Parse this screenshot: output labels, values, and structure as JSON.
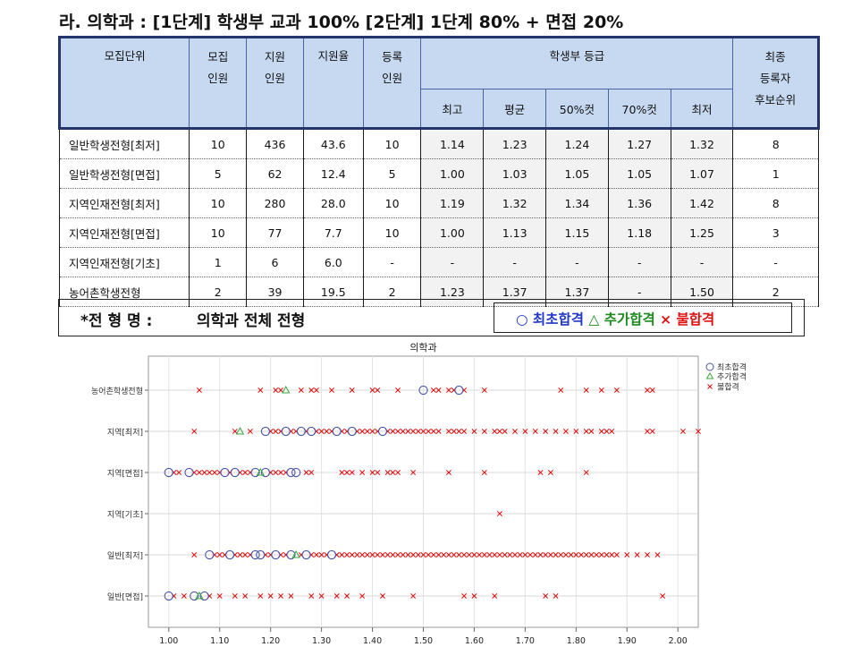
{
  "title": "라. 의학과 : [1단계] 학생부 교과 100% [2단계] 1단계 80% + 면접 20%",
  "table": {
    "headers": {
      "unit": "모집단위",
      "quota": [
        "모집",
        "인원"
      ],
      "applicants": [
        "지원",
        "인원"
      ],
      "ratio": "지원율",
      "enrolled": [
        "등록",
        "인원"
      ],
      "grade_group": "학생부 등급",
      "grade_cols": [
        "최고",
        "평균",
        "50%컷",
        "70%컷",
        "최저"
      ],
      "final": [
        "최종",
        "등록자",
        "후보순위"
      ]
    },
    "rows": [
      {
        "unit": "일반학생전형[최저]",
        "quota": "10",
        "applicants": "436",
        "ratio": "43.6",
        "enrolled": "10",
        "best": "1.14",
        "avg": "1.23",
        "cut50": "1.24",
        "cut70": "1.27",
        "worst": "1.32",
        "final": "8"
      },
      {
        "unit": "일반학생전형[면접]",
        "quota": "5",
        "applicants": "62",
        "ratio": "12.4",
        "enrolled": "5",
        "best": "1.00",
        "avg": "1.03",
        "cut50": "1.05",
        "cut70": "1.05",
        "worst": "1.07",
        "final": "1"
      },
      {
        "unit": "지역인재전형[최저]",
        "quota": "10",
        "applicants": "280",
        "ratio": "28.0",
        "enrolled": "10",
        "best": "1.19",
        "avg": "1.32",
        "cut50": "1.34",
        "cut70": "1.36",
        "worst": "1.42",
        "final": "8"
      },
      {
        "unit": "지역인재전형[면접]",
        "quota": "10",
        "applicants": "77",
        "ratio": "7.7",
        "enrolled": "10",
        "best": "1.00",
        "avg": "1.13",
        "cut50": "1.15",
        "cut70": "1.18",
        "worst": "1.25",
        "final": "3"
      },
      {
        "unit": "지역인재전형[기초]",
        "quota": "1",
        "applicants": "6",
        "ratio": "6.0",
        "enrolled": "-",
        "best": "-",
        "avg": "-",
        "cut50": "-",
        "cut70": "-",
        "worst": "-",
        "final": "-"
      },
      {
        "unit": "농어촌학생전형",
        "quota": "2",
        "applicants": "39",
        "ratio": "19.5",
        "enrolled": "2",
        "best": "1.23",
        "avg": "1.37",
        "cut50": "1.37",
        "cut70": "-",
        "worst": "1.50",
        "final": "2"
      }
    ]
  },
  "legend_bar": {
    "label": "*전 형 명 :",
    "value": "의학과 전체 전형",
    "first": "○ 최초합격",
    "added": "△ 추가합격",
    "failed": "× 불합격"
  },
  "colors": {
    "first": "#1f38c8",
    "added": "#1f8a1f",
    "failed": "#e01010",
    "header_bg": "#c6d9f1",
    "header_border": "#24356b"
  },
  "chart_data": {
    "type": "scatter",
    "title": "의학과",
    "xlabel": "",
    "ylabel": "",
    "xlim": [
      0.96,
      2.04
    ],
    "xticks": [
      "1.00",
      "1.10",
      "1.20",
      "1.30",
      "1.40",
      "1.50",
      "1.60",
      "1.70",
      "1.80",
      "1.90",
      "2.00"
    ],
    "categories": [
      "농어촌학생전형",
      "지역[최저]",
      "지역[면접]",
      "지역[기초]",
      "일반[최저]",
      "일반[면접]"
    ],
    "legend": {
      "placement": "top-right",
      "entries": [
        "최초합격",
        "추가합격",
        "불합격"
      ]
    },
    "grid": true,
    "series": [
      {
        "name": "최초합격",
        "marker": "circle",
        "points": [
          [
            "농어촌학생전형",
            1.5
          ],
          [
            "농어촌학생전형",
            1.57
          ],
          [
            "지역[최저]",
            1.19
          ],
          [
            "지역[최저]",
            1.23
          ],
          [
            "지역[최저]",
            1.26
          ],
          [
            "지역[최저]",
            1.28
          ],
          [
            "지역[최저]",
            1.33
          ],
          [
            "지역[최저]",
            1.36
          ],
          [
            "지역[최저]",
            1.42
          ],
          [
            "지역[면접]",
            1.0
          ],
          [
            "지역[면접]",
            1.04
          ],
          [
            "지역[면접]",
            1.11
          ],
          [
            "지역[면접]",
            1.13
          ],
          [
            "지역[면접]",
            1.17
          ],
          [
            "지역[면접]",
            1.19
          ],
          [
            "지역[면접]",
            1.24
          ],
          [
            "지역[면접]",
            1.25
          ],
          [
            "일반[최저]",
            1.08
          ],
          [
            "일반[최저]",
            1.12
          ],
          [
            "일반[최저]",
            1.17
          ],
          [
            "일반[최저]",
            1.18
          ],
          [
            "일반[최저]",
            1.21
          ],
          [
            "일반[최저]",
            1.24
          ],
          [
            "일반[최저]",
            1.27
          ],
          [
            "일반[최저]",
            1.32
          ],
          [
            "일반[면접]",
            1.0
          ],
          [
            "일반[면접]",
            1.05
          ],
          [
            "일반[면접]",
            1.07
          ]
        ]
      },
      {
        "name": "추가합격",
        "marker": "triangle",
        "points": [
          [
            "농어촌학생전형",
            1.23
          ],
          [
            "지역[최저]",
            1.14
          ],
          [
            "지역[면접]",
            1.18
          ],
          [
            "일반[최저]",
            1.25
          ],
          [
            "일반[면접]",
            1.06
          ]
        ]
      },
      {
        "name": "불합격",
        "marker": "x",
        "points": [
          [
            "농어촌학생전형",
            1.06
          ],
          [
            "농어촌학생전형",
            1.18
          ],
          [
            "농어촌학생전형",
            1.21
          ],
          [
            "농어촌학생전형",
            1.22
          ],
          [
            "농어촌학생전형",
            1.26
          ],
          [
            "농어촌학생전형",
            1.28
          ],
          [
            "농어촌학생전형",
            1.29
          ],
          [
            "농어촌학생전형",
            1.32
          ],
          [
            "농어촌학생전형",
            1.36
          ],
          [
            "농어촌학생전형",
            1.4
          ],
          [
            "농어촌학생전형",
            1.41
          ],
          [
            "농어촌학생전형",
            1.45
          ],
          [
            "농어촌학생전형",
            1.52
          ],
          [
            "농어촌학생전형",
            1.53
          ],
          [
            "농어촌학생전형",
            1.55
          ],
          [
            "농어촌학생전형",
            1.56
          ],
          [
            "농어촌학생전형",
            1.58
          ],
          [
            "농어촌학생전형",
            1.62
          ],
          [
            "농어촌학생전형",
            1.77
          ],
          [
            "농어촌학생전형",
            1.82
          ],
          [
            "농어촌학생전형",
            1.85
          ],
          [
            "농어촌학생전형",
            1.88
          ],
          [
            "농어촌학생전형",
            1.94
          ],
          [
            "농어촌학생전형",
            1.95
          ],
          [
            "지역[최저]",
            1.05
          ],
          [
            "지역[최저]",
            1.13
          ],
          [
            "지역[최저]",
            1.16
          ],
          [
            "지역[최저]",
            1.2
          ],
          [
            "지역[최저]",
            1.21
          ],
          [
            "지역[최저]",
            1.22
          ],
          [
            "지역[최저]",
            1.24
          ],
          [
            "지역[최저]",
            1.25
          ],
          [
            "지역[최저]",
            1.27
          ],
          [
            "지역[최저]",
            1.29
          ],
          [
            "지역[최저]",
            1.3
          ],
          [
            "지역[최저]",
            1.31
          ],
          [
            "지역[최저]",
            1.32
          ],
          [
            "지역[최저]",
            1.34
          ],
          [
            "지역[최저]",
            1.35
          ],
          [
            "지역[최저]",
            1.37
          ],
          [
            "지역[최저]",
            1.38
          ],
          [
            "지역[최저]",
            1.39
          ],
          [
            "지역[최저]",
            1.4
          ],
          [
            "지역[최저]",
            1.41
          ],
          [
            "지역[최저]",
            1.43
          ],
          [
            "지역[최저]",
            1.44
          ],
          [
            "지역[최저]",
            1.45
          ],
          [
            "지역[최저]",
            1.46
          ],
          [
            "지역[최저]",
            1.47
          ],
          [
            "지역[최저]",
            1.48
          ],
          [
            "지역[최저]",
            1.49
          ],
          [
            "지역[최저]",
            1.5
          ],
          [
            "지역[최저]",
            1.51
          ],
          [
            "지역[최저]",
            1.52
          ],
          [
            "지역[최저]",
            1.53
          ],
          [
            "지역[최저]",
            1.55
          ],
          [
            "지역[최저]",
            1.56
          ],
          [
            "지역[최저]",
            1.57
          ],
          [
            "지역[최저]",
            1.58
          ],
          [
            "지역[최저]",
            1.6
          ],
          [
            "지역[최저]",
            1.62
          ],
          [
            "지역[최저]",
            1.64
          ],
          [
            "지역[최저]",
            1.65
          ],
          [
            "지역[최저]",
            1.66
          ],
          [
            "지역[최저]",
            1.68
          ],
          [
            "지역[최저]",
            1.7
          ],
          [
            "지역[최저]",
            1.72
          ],
          [
            "지역[최저]",
            1.74
          ],
          [
            "지역[최저]",
            1.76
          ],
          [
            "지역[최저]",
            1.78
          ],
          [
            "지역[최저]",
            1.8
          ],
          [
            "지역[최저]",
            1.82
          ],
          [
            "지역[최저]",
            1.83
          ],
          [
            "지역[최저]",
            1.85
          ],
          [
            "지역[최저]",
            1.86
          ],
          [
            "지역[최저]",
            1.87
          ],
          [
            "지역[최저]",
            1.94
          ],
          [
            "지역[최저]",
            1.95
          ],
          [
            "지역[최저]",
            2.01
          ],
          [
            "지역[최저]",
            2.04
          ],
          [
            "지역[면접]",
            1.01
          ],
          [
            "지역[면접]",
            1.02
          ],
          [
            "지역[면접]",
            1.05
          ],
          [
            "지역[면접]",
            1.06
          ],
          [
            "지역[면접]",
            1.07
          ],
          [
            "지역[면접]",
            1.08
          ],
          [
            "지역[면접]",
            1.09
          ],
          [
            "지역[면접]",
            1.1
          ],
          [
            "지역[면접]",
            1.12
          ],
          [
            "지역[면접]",
            1.14
          ],
          [
            "지역[면접]",
            1.15
          ],
          [
            "지역[면접]",
            1.16
          ],
          [
            "지역[면접]",
            1.2
          ],
          [
            "지역[면접]",
            1.21
          ],
          [
            "지역[면접]",
            1.22
          ],
          [
            "지역[면접]",
            1.23
          ],
          [
            "지역[면접]",
            1.27
          ],
          [
            "지역[면접]",
            1.28
          ],
          [
            "지역[면접]",
            1.34
          ],
          [
            "지역[면접]",
            1.35
          ],
          [
            "지역[면접]",
            1.36
          ],
          [
            "지역[면접]",
            1.38
          ],
          [
            "지역[면접]",
            1.4
          ],
          [
            "지역[면접]",
            1.41
          ],
          [
            "지역[면접]",
            1.43
          ],
          [
            "지역[면접]",
            1.44
          ],
          [
            "지역[면접]",
            1.45
          ],
          [
            "지역[면접]",
            1.48
          ],
          [
            "지역[면접]",
            1.55
          ],
          [
            "지역[면접]",
            1.62
          ],
          [
            "지역[면접]",
            1.73
          ],
          [
            "지역[면접]",
            1.75
          ],
          [
            "지역[면접]",
            1.82
          ],
          [
            "지역[기초]",
            1.65
          ],
          [
            "일반[최저]",
            1.05
          ],
          [
            "일반[최저]",
            1.09
          ],
          [
            "일반[최저]",
            1.1
          ],
          [
            "일반[최저]",
            1.11
          ],
          [
            "일반[최저]",
            1.13
          ],
          [
            "일반[최저]",
            1.14
          ],
          [
            "일반[최저]",
            1.15
          ],
          [
            "일반[최저]",
            1.16
          ],
          [
            "일반[최저]",
            1.19
          ],
          [
            "일반[최저]",
            1.2
          ],
          [
            "일반[최저]",
            1.22
          ],
          [
            "일반[최저]",
            1.23
          ],
          [
            "일반[최저]",
            1.26
          ],
          [
            "일반[최저]",
            1.28
          ],
          [
            "일반[최저]",
            1.29
          ],
          [
            "일반[최저]",
            1.3
          ],
          [
            "일반[최저]",
            1.31
          ],
          [
            "일반[최저]",
            1.33
          ],
          [
            "일반[최저]",
            1.34
          ],
          [
            "일반[최저]",
            1.35
          ],
          [
            "일반[최저]",
            1.36
          ],
          [
            "일반[최저]",
            1.37
          ],
          [
            "일반[최저]",
            1.38
          ],
          [
            "일반[최저]",
            1.39
          ],
          [
            "일반[최저]",
            1.4
          ],
          [
            "일반[최저]",
            1.41
          ],
          [
            "일반[최저]",
            1.42
          ],
          [
            "일반[최저]",
            1.43
          ],
          [
            "일반[최저]",
            1.44
          ],
          [
            "일반[최저]",
            1.45
          ],
          [
            "일반[최저]",
            1.46
          ],
          [
            "일반[최저]",
            1.47
          ],
          [
            "일반[최저]",
            1.48
          ],
          [
            "일반[최저]",
            1.49
          ],
          [
            "일반[최저]",
            1.5
          ],
          [
            "일반[최저]",
            1.51
          ],
          [
            "일반[최저]",
            1.52
          ],
          [
            "일반[최저]",
            1.53
          ],
          [
            "일반[최저]",
            1.54
          ],
          [
            "일반[최저]",
            1.55
          ],
          [
            "일반[최저]",
            1.56
          ],
          [
            "일반[최저]",
            1.57
          ],
          [
            "일반[최저]",
            1.58
          ],
          [
            "일반[최저]",
            1.59
          ],
          [
            "일반[최저]",
            1.6
          ],
          [
            "일반[최저]",
            1.61
          ],
          [
            "일반[최저]",
            1.62
          ],
          [
            "일반[최저]",
            1.63
          ],
          [
            "일반[최저]",
            1.64
          ],
          [
            "일반[최저]",
            1.65
          ],
          [
            "일반[최저]",
            1.66
          ],
          [
            "일반[최저]",
            1.67
          ],
          [
            "일반[최저]",
            1.68
          ],
          [
            "일반[최저]",
            1.69
          ],
          [
            "일반[최저]",
            1.7
          ],
          [
            "일반[최저]",
            1.71
          ],
          [
            "일반[최저]",
            1.72
          ],
          [
            "일반[최저]",
            1.73
          ],
          [
            "일반[최저]",
            1.74
          ],
          [
            "일반[최저]",
            1.75
          ],
          [
            "일반[최저]",
            1.76
          ],
          [
            "일반[최저]",
            1.77
          ],
          [
            "일반[최저]",
            1.78
          ],
          [
            "일반[최저]",
            1.79
          ],
          [
            "일반[최저]",
            1.8
          ],
          [
            "일반[최저]",
            1.81
          ],
          [
            "일반[최저]",
            1.82
          ],
          [
            "일반[최저]",
            1.83
          ],
          [
            "일반[최저]",
            1.84
          ],
          [
            "일반[최저]",
            1.85
          ],
          [
            "일반[최저]",
            1.86
          ],
          [
            "일반[최저]",
            1.87
          ],
          [
            "일반[최저]",
            1.88
          ],
          [
            "일반[최저]",
            1.9
          ],
          [
            "일반[최저]",
            1.92
          ],
          [
            "일반[최저]",
            1.94
          ],
          [
            "일반[최저]",
            1.96
          ],
          [
            "일반[면접]",
            1.01
          ],
          [
            "일반[면접]",
            1.03
          ],
          [
            "일반[면접]",
            1.08
          ],
          [
            "일반[면접]",
            1.1
          ],
          [
            "일반[면접]",
            1.13
          ],
          [
            "일반[면접]",
            1.15
          ],
          [
            "일반[면접]",
            1.18
          ],
          [
            "일반[면접]",
            1.2
          ],
          [
            "일반[면접]",
            1.22
          ],
          [
            "일반[면접]",
            1.24
          ],
          [
            "일반[면접]",
            1.28
          ],
          [
            "일반[면접]",
            1.3
          ],
          [
            "일반[면접]",
            1.33
          ],
          [
            "일반[면접]",
            1.35
          ],
          [
            "일반[면접]",
            1.38
          ],
          [
            "일반[면접]",
            1.42
          ],
          [
            "일반[면접]",
            1.48
          ],
          [
            "일반[면접]",
            1.58
          ],
          [
            "일반[면접]",
            1.6
          ],
          [
            "일반[면접]",
            1.64
          ],
          [
            "일반[면접]",
            1.74
          ],
          [
            "일반[면접]",
            1.76
          ],
          [
            "일반[면접]",
            1.97
          ]
        ]
      }
    ]
  }
}
